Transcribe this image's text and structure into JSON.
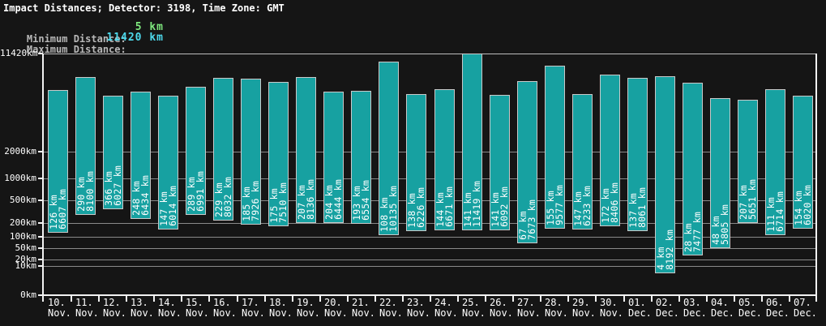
{
  "header": {
    "title": "Impact Distances; Detector: 3198, Time Zone: GMT",
    "minimum": {
      "label": "Minimum Distance:",
      "value": "5 km"
    },
    "maximum": {
      "label": "Maximum Distance:",
      "value": "11420 km"
    }
  },
  "colors": {
    "background": "#151515",
    "text": "#ffffff",
    "label_gray": "#b8b8b8",
    "min_value_green": "#7ee87e",
    "max_value_cyan": "#4dd9ec",
    "bar_fill": "#17a1a1",
    "bar_border": "#c9c9c9",
    "grid": "#8a8a8a",
    "grid_top": "#bdbdbd",
    "axis": "#f2f2f2"
  },
  "chart_data": {
    "type": "bar",
    "subtype": "floating-range-bars",
    "title": "Impact Distances; Detector: 3198, Time Zone: GMT",
    "xlabel": "",
    "ylabel": "",
    "y_scale": "power(0.3)",
    "ylim": [
      0,
      11420
    ],
    "yticks": [
      11420,
      2000,
      1000,
      500,
      200,
      100,
      50,
      20,
      10,
      0
    ],
    "ytick_suffix": "km",
    "grid": "horizontal",
    "legend": "none",
    "value_suffix": " km",
    "categories": [
      "10. Nov.",
      "11. Nov.",
      "12. Nov.",
      "13. Nov.",
      "14. Nov.",
      "15. Nov.",
      "16. Nov.",
      "17. Nov.",
      "18. Nov.",
      "19. Nov.",
      "20. Nov.",
      "21. Nov.",
      "22. Nov.",
      "23. Nov.",
      "24. Nov.",
      "25. Nov.",
      "26. Nov.",
      "27. Nov.",
      "28. Nov.",
      "29. Nov.",
      "30. Nov.",
      "01. Dec.",
      "02. Dec.",
      "03. Dec.",
      "04. Dec.",
      "05. Dec.",
      "06. Dec.",
      "07. Dec."
    ],
    "series": [
      {
        "name": "Minimum Distance",
        "values": [
          126,
          290,
          366,
          248,
          147,
          289,
          229,
          185,
          175,
          207,
          204,
          193,
          108,
          138,
          144,
          141,
          141,
          67,
          155,
          147,
          172,
          137,
          4,
          28,
          48,
          207,
          111,
          154
        ]
      },
      {
        "name": "Maximum Distance",
        "values": [
          6607,
          8100,
          6027,
          6434,
          6014,
          6991,
          8032,
          7926,
          7510,
          8136,
          6444,
          6554,
          10135,
          6226,
          6671,
          11419,
          6092,
          7673,
          9577,
          6233,
          8406,
          8061,
          8192,
          7477,
          5805,
          5651,
          6714,
          6020
        ]
      }
    ]
  }
}
